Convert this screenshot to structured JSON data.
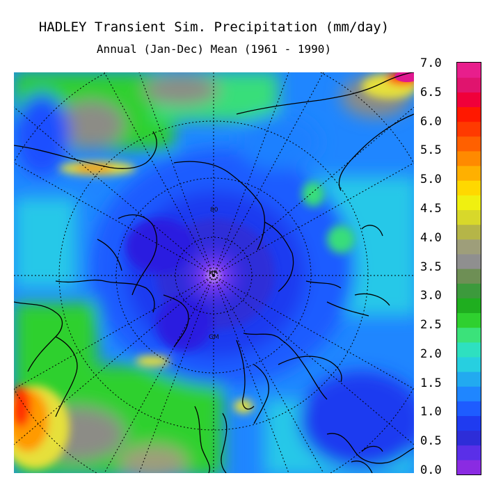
{
  "title": "HADLEY Transient Sim. Precipitation (mm/day)",
  "subtitle": "Annual (Jan-Dec) Mean (1961 - 1990)",
  "colorbar": {
    "ticks": [
      "7.0",
      "6.5",
      "6.0",
      "5.5",
      "5.0",
      "4.5",
      "4.0",
      "3.5",
      "3.0",
      "2.5",
      "2.0",
      "1.5",
      "1.0",
      "0.5",
      "0.0"
    ],
    "colors": [
      "#8a2be2",
      "#5a2fe8",
      "#2d2dd8",
      "#1f3bf0",
      "#1e5cff",
      "#1f86ff",
      "#22aaf0",
      "#27cfe0",
      "#2ee0c0",
      "#3be27a",
      "#2fd02f",
      "#1fae1f",
      "#3c9a3c",
      "#6e8f55",
      "#8f8f8f",
      "#9e9e7a",
      "#b5b548",
      "#d8d82a",
      "#f0f010",
      "#ffd800",
      "#ffb000",
      "#ff8a00",
      "#ff6000",
      "#ff3a00",
      "#ff1800",
      "#f0003a",
      "#e0146e",
      "#e81e8c"
    ]
  },
  "map": {
    "projection": "north-polar-stereographic",
    "labels": {
      "pole": "NP",
      "lat80": "80",
      "gm": "GM"
    },
    "colors": {
      "very_low": "#2a1de0",
      "low": "#1f4fff",
      "low_mid": "#1e80ff",
      "mid": "#27c8e8",
      "mid_high": "#37de7a",
      "high": "#2cc62c",
      "gray": "#8c8c86",
      "yellow": "#e6e03a",
      "orange": "#ff9a00",
      "red": "#ff3000",
      "magenta": "#e01890"
    }
  }
}
